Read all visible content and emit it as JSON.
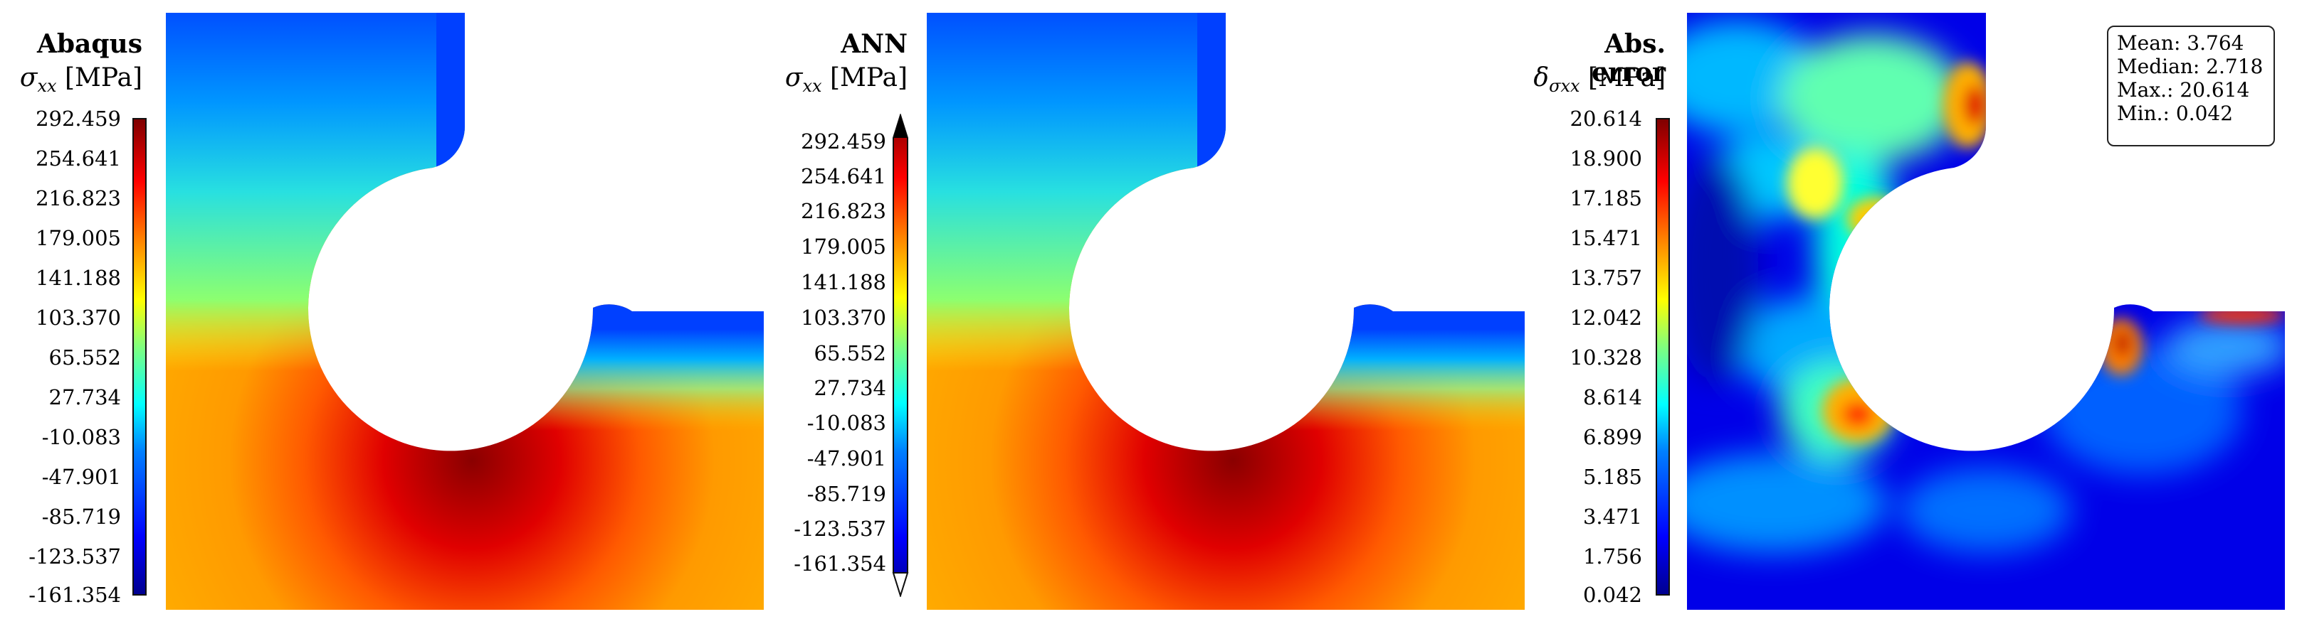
{
  "panels": [
    {
      "title": "Abaqus",
      "quantity_symbol": "σ",
      "quantity_sub": "xx",
      "unit": "[MPa]",
      "ticks": [
        "292.459",
        "254.641",
        "216.823",
        "179.005",
        "141.188",
        "103.370",
        "65.552",
        "27.734",
        "-10.083",
        "-47.901",
        "-85.719",
        "-123.537",
        "-161.354"
      ]
    },
    {
      "title": "ANN",
      "quantity_symbol": "σ",
      "quantity_sub": "xx",
      "unit": "[MPa]",
      "ticks": [
        "292.459",
        "254.641",
        "216.823",
        "179.005",
        "141.188",
        "103.370",
        "65.552",
        "27.734",
        "-10.083",
        "-47.901",
        "-85.719",
        "-123.537",
        "-161.354"
      ]
    },
    {
      "title": "Abs. error",
      "quantity_symbol": "δ",
      "quantity_sub": "σxx",
      "unit": "[MPa]",
      "ticks": [
        "20.614",
        "18.900",
        "17.185",
        "15.471",
        "13.757",
        "12.042",
        "10.328",
        "8.614",
        "6.899",
        "5.185",
        "3.471",
        "1.756",
        "0.042"
      ]
    }
  ],
  "stats": {
    "mean": "Mean: 3.764",
    "median": "Median: 2.718",
    "max": "Max.: 20.614",
    "min": "Min.: 0.042"
  },
  "colors": {
    "jet_low": "#00008f",
    "jet_mid": "#7fff7f",
    "jet_high": "#7f0000"
  }
}
